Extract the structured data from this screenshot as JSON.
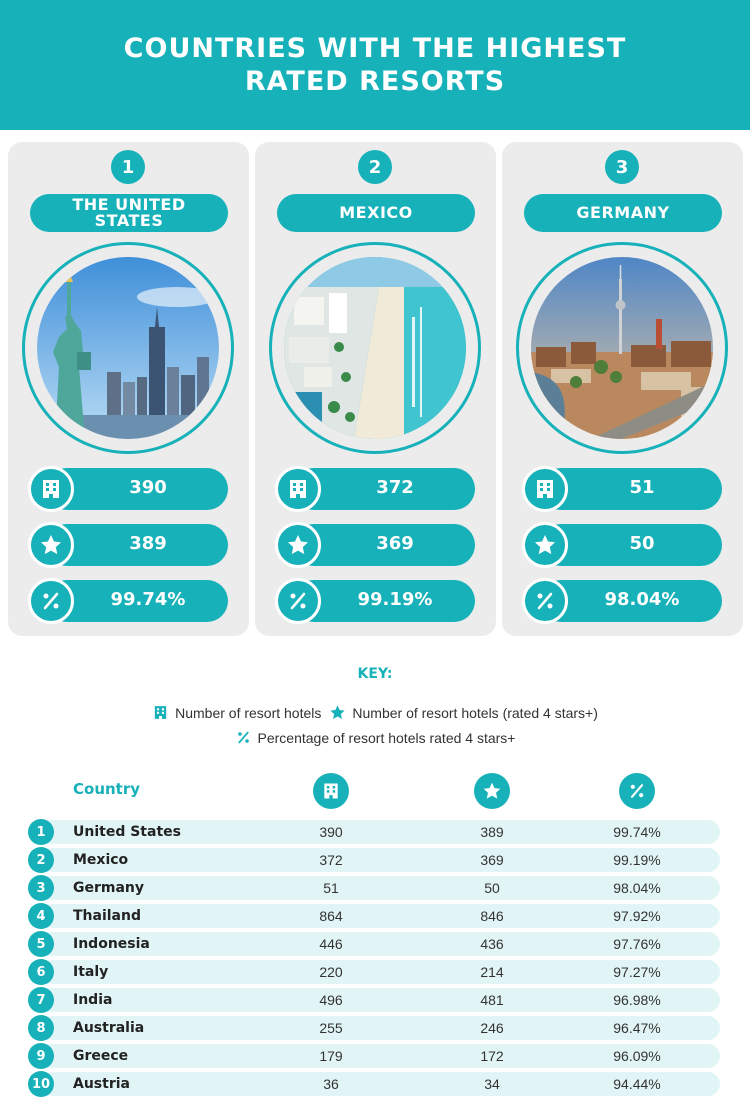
{
  "header": {
    "title": "COUNTRIES WITH THE HIGHEST RATED RESORTS"
  },
  "colors": {
    "accent": "#17b1b9",
    "panel": "#ececec",
    "row": "#e2f5f6"
  },
  "top3": [
    {
      "rank": "1",
      "country": "THE UNITED STATES",
      "photo": "statue-of-liberty-new-york-skyline",
      "resort_hotels": "390",
      "rated_4plus": "389",
      "percentage": "99.74%"
    },
    {
      "rank": "2",
      "country": "MEXICO",
      "photo": "cancun-beach-hotels",
      "resort_hotels": "372",
      "rated_4plus": "369",
      "percentage": "99.19%"
    },
    {
      "rank": "3",
      "country": "GERMANY",
      "photo": "berlin-tv-tower-skyline",
      "resort_hotels": "51",
      "rated_4plus": "50",
      "percentage": "98.04%"
    }
  ],
  "key": {
    "title": "KEY:",
    "hotels": "Number of resort hotels",
    "rated": "Number of resort hotels (rated 4 stars+)",
    "percentage": "Percentage of resort hotels rated 4 stars+"
  },
  "icons": {
    "hotels": "building-icon",
    "rated": "star-icon",
    "percentage": "percent-icon"
  },
  "table": {
    "country_header": "Country",
    "rows": [
      {
        "rank": "1",
        "country": "United States",
        "hotels": "390",
        "rated": "389",
        "pct": "99.74%"
      },
      {
        "rank": "2",
        "country": "Mexico",
        "hotels": "372",
        "rated": "369",
        "pct": "99.19%"
      },
      {
        "rank": "3",
        "country": "Germany",
        "hotels": "51",
        "rated": "50",
        "pct": "98.04%"
      },
      {
        "rank": "4",
        "country": "Thailand",
        "hotels": "864",
        "rated": "846",
        "pct": "97.92%"
      },
      {
        "rank": "5",
        "country": "Indonesia",
        "hotels": "446",
        "rated": "436",
        "pct": "97.76%"
      },
      {
        "rank": "6",
        "country": "Italy",
        "hotels": "220",
        "rated": "214",
        "pct": "97.27%"
      },
      {
        "rank": "7",
        "country": "India",
        "hotels": "496",
        "rated": "481",
        "pct": "96.98%"
      },
      {
        "rank": "8",
        "country": "Australia",
        "hotels": "255",
        "rated": "246",
        "pct": "96.47%"
      },
      {
        "rank": "9",
        "country": "Greece",
        "hotels": "179",
        "rated": "172",
        "pct": "96.09%"
      },
      {
        "rank": "10",
        "country": "Austria",
        "hotels": "36",
        "rated": "34",
        "pct": "94.44%"
      }
    ]
  }
}
